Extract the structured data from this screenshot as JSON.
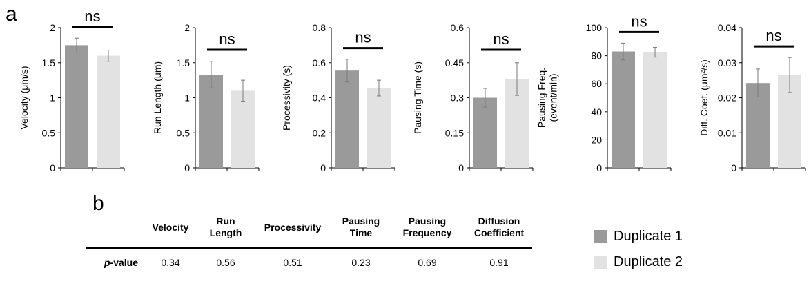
{
  "panel_letters": {
    "a": "a",
    "b": "b"
  },
  "colors": {
    "duplicate_1": "#9a9a9a",
    "duplicate_2": "#e2e2e2",
    "axis": "#000000",
    "error_bar": "#7a7a7a"
  },
  "chart_data": [
    {
      "type": "bar",
      "categories": [
        "Duplicate 1",
        "Duplicate 2"
      ],
      "values": [
        1.75,
        1.6
      ],
      "errors": [
        0.1,
        0.08
      ],
      "ylabel": "Velocity (μm/s)",
      "ylim": [
        0,
        2
      ],
      "yticks": [
        "0",
        "0.5",
        "1",
        "1.5",
        "2"
      ],
      "annotation": "ns"
    },
    {
      "type": "bar",
      "categories": [
        "Duplicate 1",
        "Duplicate 2"
      ],
      "values": [
        1.33,
        1.1
      ],
      "errors": [
        0.19,
        0.15
      ],
      "ylabel": "Run Length (μm)",
      "ylim": [
        0,
        2
      ],
      "yticks": [
        "0",
        "0.5",
        "1",
        "1.5",
        "2"
      ],
      "annotation": "ns"
    },
    {
      "type": "bar",
      "categories": [
        "Duplicate 1",
        "Duplicate 2"
      ],
      "values": [
        0.555,
        0.455
      ],
      "errors": [
        0.065,
        0.045
      ],
      "ylabel": "Processivity (s)",
      "ylim": [
        0,
        0.8
      ],
      "yticks": [
        "0",
        "0.2",
        "0.4",
        "0.6",
        "0.8"
      ],
      "annotation": "ns"
    },
    {
      "type": "bar",
      "categories": [
        "Duplicate 1",
        "Duplicate 2"
      ],
      "values": [
        0.3,
        0.38
      ],
      "errors": [
        0.04,
        0.07
      ],
      "ylabel": "Pausing Time (s)",
      "ylim": [
        0,
        0.6
      ],
      "yticks": [
        "0",
        "0.15",
        "0.3",
        "0.45",
        "0.6"
      ],
      "annotation": "ns"
    },
    {
      "type": "bar",
      "categories": [
        "Duplicate 1",
        "Duplicate 2"
      ],
      "values": [
        83,
        82.5
      ],
      "errors": [
        6,
        3.5
      ],
      "ylabel": "Pausing Freq.\n(event/min)",
      "ylim": [
        0,
        100
      ],
      "yticks": [
        "0",
        "20",
        "40",
        "60",
        "80",
        "100"
      ],
      "annotation": "ns"
    },
    {
      "type": "bar",
      "categories": [
        "Duplicate 1",
        "Duplicate 2"
      ],
      "values": [
        0.0242,
        0.0265
      ],
      "errors": [
        0.004,
        0.005
      ],
      "ylabel": "Diff. Coef. (μm²/s)",
      "ylim": [
        0,
        0.04
      ],
      "yticks": [
        "0",
        "0.01",
        "0.02",
        "0.03",
        "0.04"
      ],
      "annotation": "ns"
    },
    {
      "type": "table",
      "columns": [
        "Velocity",
        "Run\nLength",
        "Processivity",
        "Pausing\nTime",
        "Pausing\nFrequency",
        "Diffusion\nCoefficient"
      ],
      "row_label_prefix": "p",
      "row_label_suffix": "-value",
      "values": [
        "0.34",
        "0.56",
        "0.51",
        "0.23",
        "0.69",
        "0.91"
      ]
    }
  ],
  "legend": [
    {
      "label": "Duplicate 1",
      "color": "#9a9a9a"
    },
    {
      "label": "Duplicate 2",
      "color": "#e2e2e2"
    }
  ]
}
